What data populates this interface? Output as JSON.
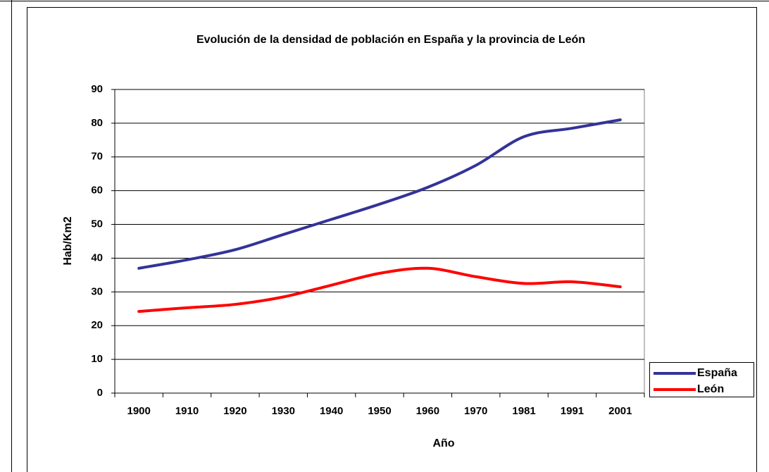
{
  "chart_data": {
    "type": "line",
    "title": "Evolución de la densidad de población en España y la provincia de León",
    "x_label": "Año",
    "y_label": "Hab/Km2",
    "categories": [
      "1900",
      "1910",
      "1920",
      "1930",
      "1940",
      "1950",
      "1960",
      "1970",
      "1981",
      "1991",
      "2001"
    ],
    "series": [
      {
        "name": "España",
        "color": "#333399",
        "values": [
          37,
          39.5,
          42.5,
          47,
          51.5,
          56,
          61,
          67.5,
          76,
          78.5,
          81
        ]
      },
      {
        "name": "León",
        "color": "#ff0000",
        "values": [
          24.2,
          25.3,
          26.3,
          28.5,
          32,
          35.5,
          37,
          34.5,
          32.5,
          33,
          31.5
        ]
      }
    ],
    "ylim": [
      0,
      90
    ],
    "yticks": [
      0,
      10,
      20,
      30,
      40,
      50,
      60,
      70,
      80,
      90
    ],
    "grid": true,
    "legend": "right"
  }
}
